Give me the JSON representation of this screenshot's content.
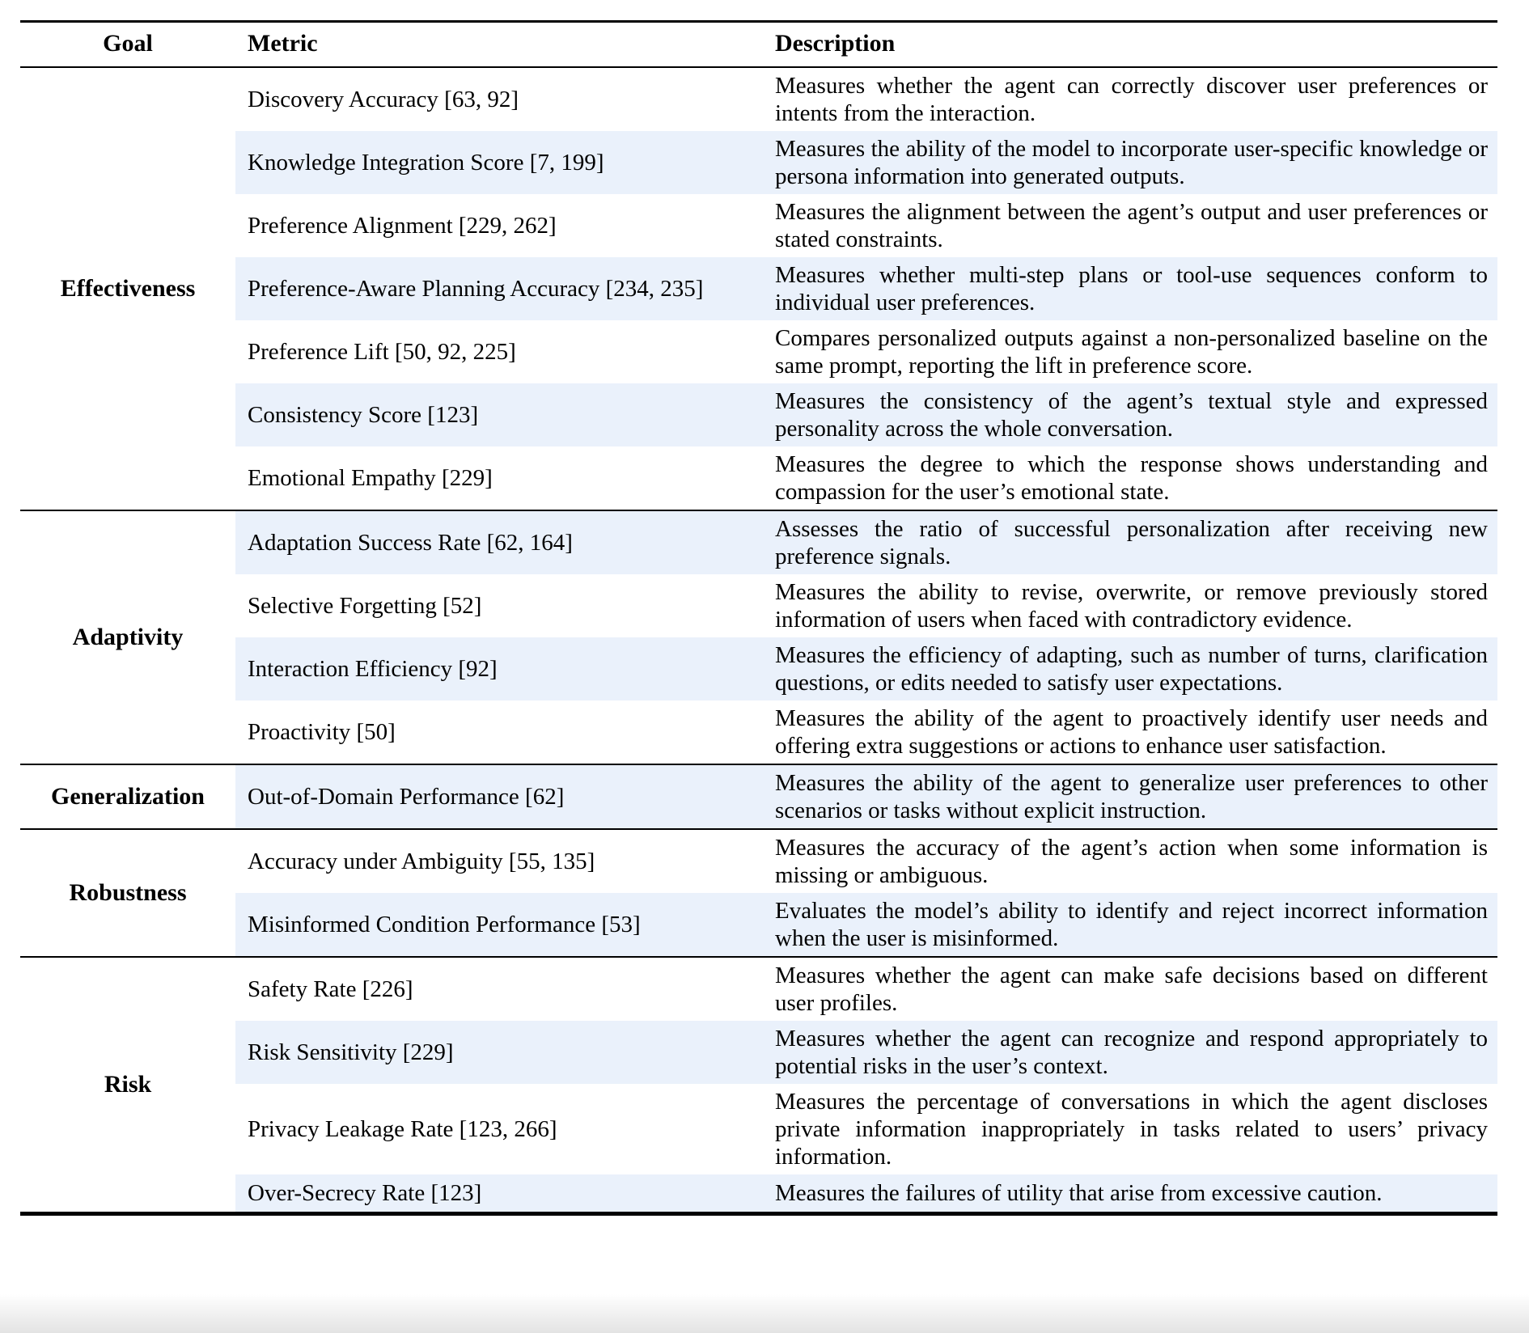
{
  "table": {
    "headers": {
      "goal": "Goal",
      "metric": "Metric",
      "description": "Description"
    },
    "colors": {
      "row_highlight": "#eaf1fb",
      "rule": "#000000"
    },
    "sections": [
      {
        "goal": "Effectiveness",
        "rows": [
          {
            "metric": "Discovery Accuracy [63, 92]",
            "description": "Measures whether the agent can correctly discover user preferences or intents from the interaction."
          },
          {
            "metric": "Knowledge Integration Score [7, 199]",
            "description": "Measures the ability of the model to incorporate user-specific knowledge or persona information into generated outputs."
          },
          {
            "metric": "Preference Alignment [229, 262]",
            "description": "Measures the alignment between the agent’s output and user preferences or stated constraints."
          },
          {
            "metric": "Preference-Aware Planning Accuracy [234, 235]",
            "description": "Measures whether multi-step plans or tool-use sequences conform to individual user preferences."
          },
          {
            "metric": "Preference Lift [50, 92, 225]",
            "description": "Compares personalized outputs against a non-personalized baseline on the same prompt, reporting the lift in preference score."
          },
          {
            "metric": "Consistency Score [123]",
            "description": "Measures the consistency of the agent’s textual style and expressed personality across the whole conversation."
          },
          {
            "metric": "Emotional Empathy [229]",
            "description": "Measures the degree to which the response shows understanding and compassion for the user’s emotional state."
          }
        ]
      },
      {
        "goal": "Adaptivity",
        "rows": [
          {
            "metric": "Adaptation Success Rate [62, 164]",
            "description": "Assesses the ratio of successful personalization after receiving new preference signals."
          },
          {
            "metric": "Selective Forgetting [52]",
            "description": "Measures the ability to revise, overwrite, or remove previously stored information of users when faced with contradictory evidence."
          },
          {
            "metric": "Interaction Efficiency [92]",
            "description": "Measures the efficiency of adapting, such as number of turns, clarification questions, or edits needed to satisfy user expectations."
          },
          {
            "metric": "Proactivity [50]",
            "description": "Measures the ability of the agent to proactively identify user needs and offering extra suggestions or actions to enhance user satisfaction."
          }
        ]
      },
      {
        "goal": "Generalization",
        "rows": [
          {
            "metric": "Out-of-Domain Performance [62]",
            "description": "Measures the ability of the agent to generalize user preferences to other scenarios or tasks without explicit instruction."
          }
        ]
      },
      {
        "goal": "Robustness",
        "rows": [
          {
            "metric": "Accuracy under Ambiguity [55, 135]",
            "description": "Measures the accuracy of the agent’s action when some information is missing or ambiguous."
          },
          {
            "metric": "Misinformed Condition Performance [53]",
            "description": "Evaluates the model’s ability to identify and reject incorrect information when the user is misinformed."
          }
        ]
      },
      {
        "goal": "Risk",
        "rows": [
          {
            "metric": "Safety Rate [226]",
            "description": "Measures whether the agent can make safe decisions based on different user profiles."
          },
          {
            "metric": "Risk Sensitivity [229]",
            "description": "Measures whether the agent can recognize and respond appropriately to potential risks in the user’s context."
          },
          {
            "metric": "Privacy Leakage Rate [123, 266]",
            "description": "Measures the percentage of conversations in which the agent discloses private information inappropriately in tasks related to users’ privacy information."
          },
          {
            "metric": "Over-Secrecy Rate [123]",
            "description": "Measures the failures of utility that arise from excessive caution."
          }
        ]
      }
    ]
  }
}
